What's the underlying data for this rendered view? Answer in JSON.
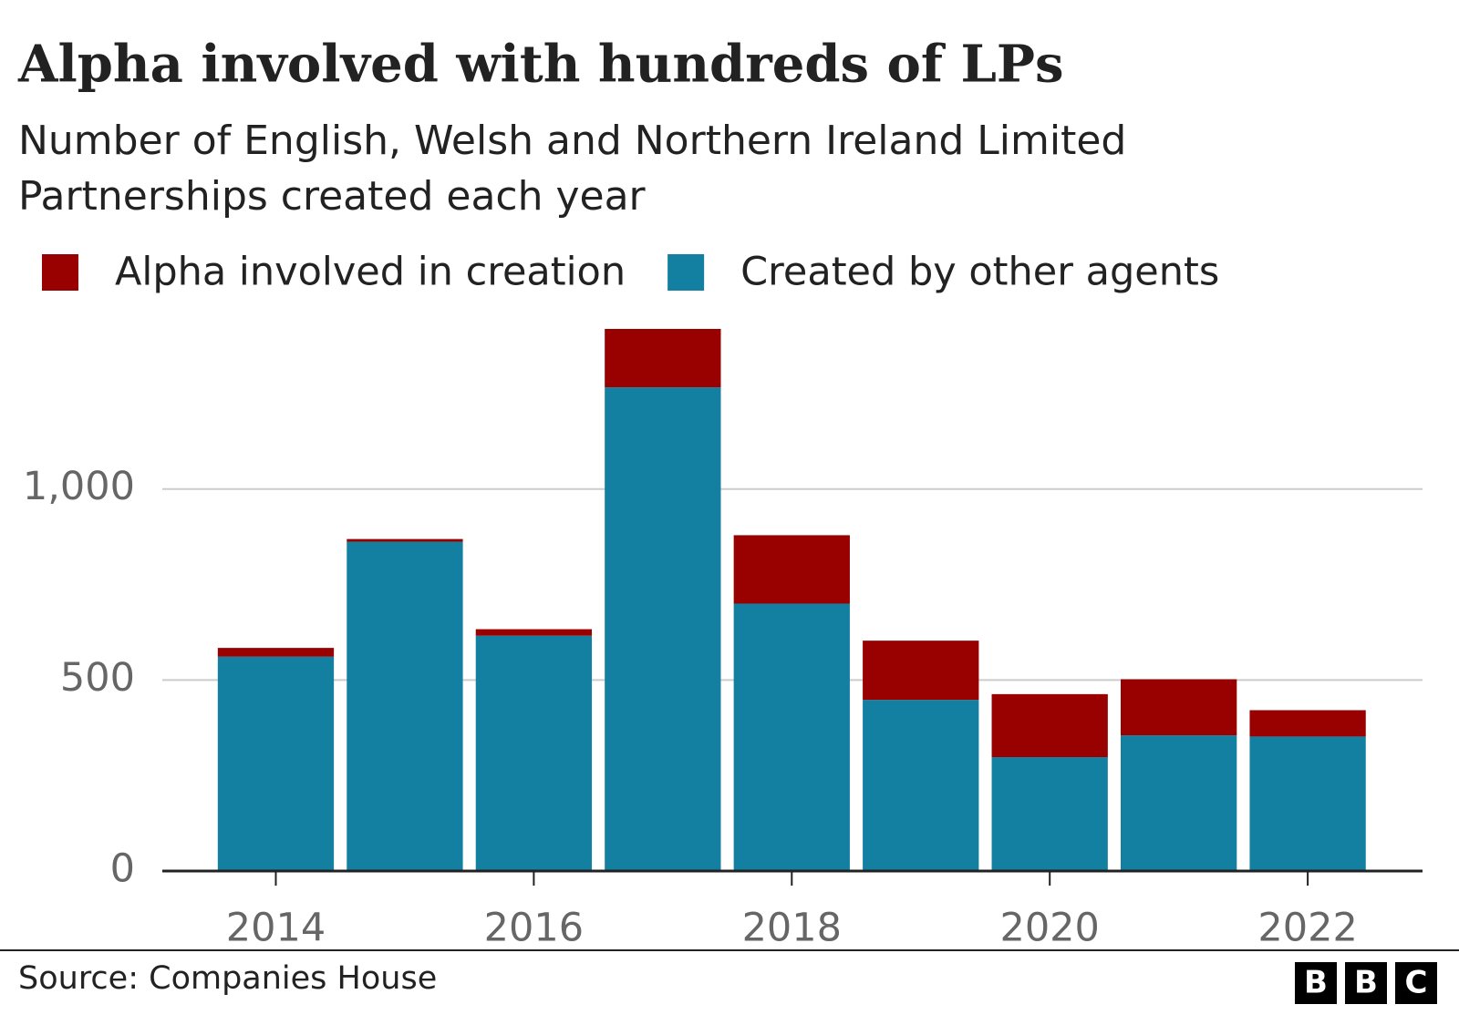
{
  "chart_data": {
    "type": "bar",
    "stacked": true,
    "title": "Alpha involved with hundreds of LPs",
    "subtitle": [
      "Number of English, Welsh and Northern Ireland Limited",
      "Partnerships created each year"
    ],
    "x": [
      2014,
      2015,
      2016,
      2017,
      2018,
      2019,
      2020,
      2021,
      2022
    ],
    "series": [
      {
        "name": "Alpha involved in creation",
        "color": "#990000",
        "values": [
          23,
          7,
          17,
          153,
          179,
          155,
          165,
          147,
          69
        ]
      },
      {
        "name": "Created by other agents",
        "color": "#1380a1",
        "values": [
          561,
          862,
          616,
          1266,
          700,
          448,
          298,
          355,
          352
        ]
      }
    ],
    "xlim": [
      2013.12,
      2022.89
    ],
    "xticks": [
      2014,
      2016,
      2018,
      2020,
      2022
    ],
    "ylim": [
      0,
      1450
    ],
    "yticks": [
      0,
      500,
      {
        "value": 1000,
        "label": "1,000"
      }
    ],
    "grid": true,
    "source": "Source: Companies House",
    "logo": [
      "B",
      "B",
      "C"
    ]
  }
}
